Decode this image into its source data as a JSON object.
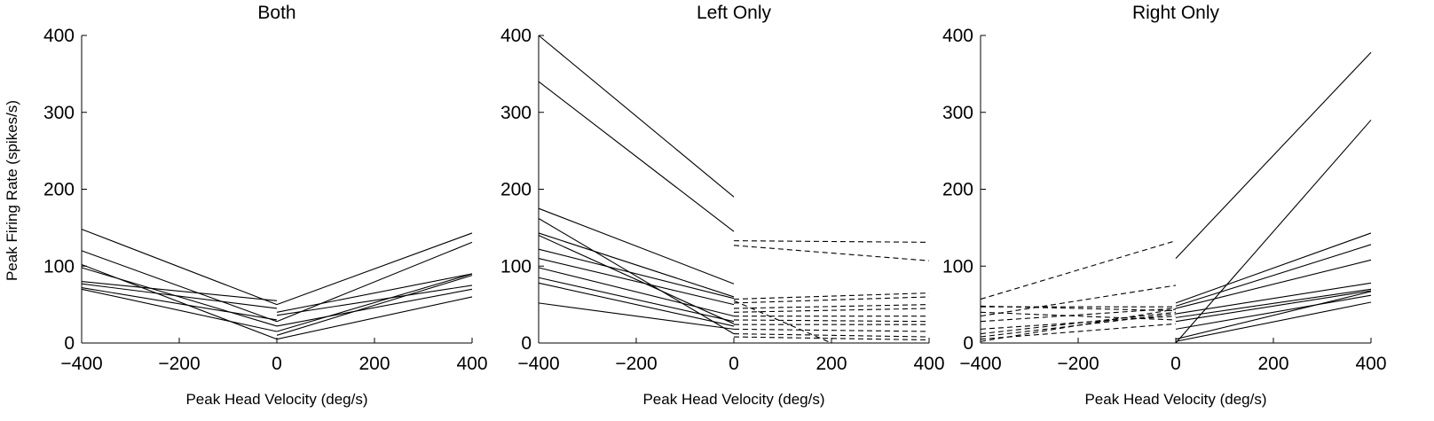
{
  "figure": {
    "ylabel": "Peak Firing Rate (spikes/s)",
    "line_color": "#000000"
  },
  "chart_data": [
    {
      "type": "line",
      "title": "Both",
      "xlabel": "Peak Head Velocity (deg/s)",
      "ylabel": "Peak Firing Rate (spikes/s)",
      "xlim": [
        -400,
        400
      ],
      "ylim": [
        0,
        400
      ],
      "xticks": [
        "−400",
        "−200",
        "0",
        "200",
        "400"
      ],
      "yticks": [
        "0",
        "100",
        "200",
        "300",
        "400"
      ],
      "grid": false,
      "solid_segments": [
        [
          [
            -400,
            148
          ],
          [
            0,
            50
          ]
        ],
        [
          [
            -400,
            120
          ],
          [
            0,
            28
          ]
        ],
        [
          [
            -400,
            102
          ],
          [
            0,
            5
          ]
        ],
        [
          [
            -400,
            98
          ],
          [
            0,
            22
          ]
        ],
        [
          [
            -400,
            80
          ],
          [
            0,
            55
          ]
        ],
        [
          [
            -400,
            77
          ],
          [
            0,
            45
          ]
        ],
        [
          [
            -400,
            72
          ],
          [
            0,
            30
          ]
        ],
        [
          [
            -400,
            70
          ],
          [
            0,
            15
          ]
        ],
        [
          [
            0,
            50
          ],
          [
            400,
            143
          ]
        ],
        [
          [
            0,
            28
          ],
          [
            400,
            131
          ]
        ],
        [
          [
            0,
            40
          ],
          [
            400,
            90
          ]
        ],
        [
          [
            0,
            36
          ],
          [
            400,
            75
          ]
        ],
        [
          [
            0,
            22
          ],
          [
            400,
            70
          ]
        ],
        [
          [
            0,
            15
          ],
          [
            400,
            90
          ]
        ],
        [
          [
            0,
            10
          ],
          [
            400,
            88
          ]
        ],
        [
          [
            0,
            5
          ],
          [
            400,
            60
          ]
        ]
      ],
      "dashed_segments": []
    },
    {
      "type": "line",
      "title": "Left Only",
      "xlabel": "Peak Head Velocity (deg/s)",
      "ylabel": "",
      "xlim": [
        -400,
        400
      ],
      "ylim": [
        0,
        400
      ],
      "xticks": [
        "−400",
        "−200",
        "0",
        "200",
        "400"
      ],
      "yticks": [
        "0",
        "100",
        "200",
        "300",
        "400"
      ],
      "grid": false,
      "solid_segments": [
        [
          [
            -400,
            400
          ],
          [
            0,
            190
          ]
        ],
        [
          [
            -400,
            340
          ],
          [
            0,
            145
          ]
        ],
        [
          [
            -400,
            175
          ],
          [
            0,
            77
          ]
        ],
        [
          [
            -400,
            162
          ],
          [
            0,
            12
          ]
        ],
        [
          [
            -400,
            143
          ],
          [
            0,
            60
          ]
        ],
        [
          [
            -400,
            140
          ],
          [
            0,
            25
          ]
        ],
        [
          [
            -400,
            122
          ],
          [
            0,
            58
          ]
        ],
        [
          [
            -400,
            110
          ],
          [
            0,
            50
          ]
        ],
        [
          [
            -400,
            98
          ],
          [
            0,
            35
          ]
        ],
        [
          [
            -400,
            85
          ],
          [
            0,
            28
          ]
        ],
        [
          [
            -400,
            78
          ],
          [
            0,
            22
          ]
        ],
        [
          [
            -400,
            52
          ],
          [
            0,
            18
          ]
        ]
      ],
      "dashed_segments": [
        [
          [
            0,
            133
          ],
          [
            400,
            131
          ]
        ],
        [
          [
            0,
            127
          ],
          [
            400,
            107
          ]
        ],
        [
          [
            0,
            57
          ],
          [
            400,
            65
          ]
        ],
        [
          [
            0,
            52
          ],
          [
            400,
            60
          ]
        ],
        [
          [
            0,
            45
          ],
          [
            400,
            50
          ]
        ],
        [
          [
            0,
            40
          ],
          [
            400,
            45
          ]
        ],
        [
          [
            0,
            35
          ],
          [
            400,
            35
          ]
        ],
        [
          [
            0,
            30
          ],
          [
            400,
            28
          ]
        ],
        [
          [
            0,
            24
          ],
          [
            400,
            24
          ]
        ],
        [
          [
            0,
            18
          ],
          [
            400,
            15
          ]
        ],
        [
          [
            0,
            12
          ],
          [
            400,
            8
          ]
        ],
        [
          [
            0,
            8
          ],
          [
            400,
            4
          ]
        ],
        [
          [
            0,
            55
          ],
          [
            200,
            0
          ]
        ]
      ]
    },
    {
      "type": "line",
      "title": "Right Only",
      "xlabel": "Peak Head Velocity (deg/s)",
      "ylabel": "",
      "xlim": [
        -400,
        400
      ],
      "ylim": [
        0,
        400
      ],
      "xticks": [
        "−400",
        "−200",
        "0",
        "200",
        "400"
      ],
      "yticks": [
        "0",
        "100",
        "200",
        "300",
        "400"
      ],
      "grid": false,
      "solid_segments": [
        [
          [
            0,
            110
          ],
          [
            400,
            378
          ]
        ],
        [
          [
            0,
            0
          ],
          [
            400,
            290
          ]
        ],
        [
          [
            0,
            52
          ],
          [
            400,
            143
          ]
        ],
        [
          [
            0,
            48
          ],
          [
            400,
            128
          ]
        ],
        [
          [
            0,
            45
          ],
          [
            400,
            108
          ]
        ],
        [
          [
            0,
            38
          ],
          [
            400,
            78
          ]
        ],
        [
          [
            0,
            33
          ],
          [
            400,
            70
          ]
        ],
        [
          [
            0,
            28
          ],
          [
            400,
            68
          ]
        ],
        [
          [
            0,
            18
          ],
          [
            400,
            62
          ]
        ],
        [
          [
            0,
            5
          ],
          [
            400,
            67
          ]
        ],
        [
          [
            0,
            2
          ],
          [
            400,
            53
          ]
        ]
      ],
      "dashed_segments": [
        [
          [
            -400,
            57
          ],
          [
            0,
            133
          ]
        ],
        [
          [
            -400,
            48
          ],
          [
            0,
            42
          ]
        ],
        [
          [
            -400,
            47
          ],
          [
            0,
            47
          ]
        ],
        [
          [
            -400,
            40
          ],
          [
            0,
            30
          ]
        ],
        [
          [
            -400,
            35
          ],
          [
            0,
            75
          ]
        ],
        [
          [
            -400,
            28
          ],
          [
            0,
            45
          ]
        ],
        [
          [
            -400,
            18
          ],
          [
            0,
            35
          ]
        ],
        [
          [
            -400,
            12
          ],
          [
            0,
            40
          ]
        ],
        [
          [
            -400,
            8
          ],
          [
            0,
            38
          ]
        ],
        [
          [
            -400,
            5
          ],
          [
            0,
            25
          ]
        ],
        [
          [
            -400,
            2
          ],
          [
            0,
            44
          ]
        ]
      ]
    }
  ]
}
